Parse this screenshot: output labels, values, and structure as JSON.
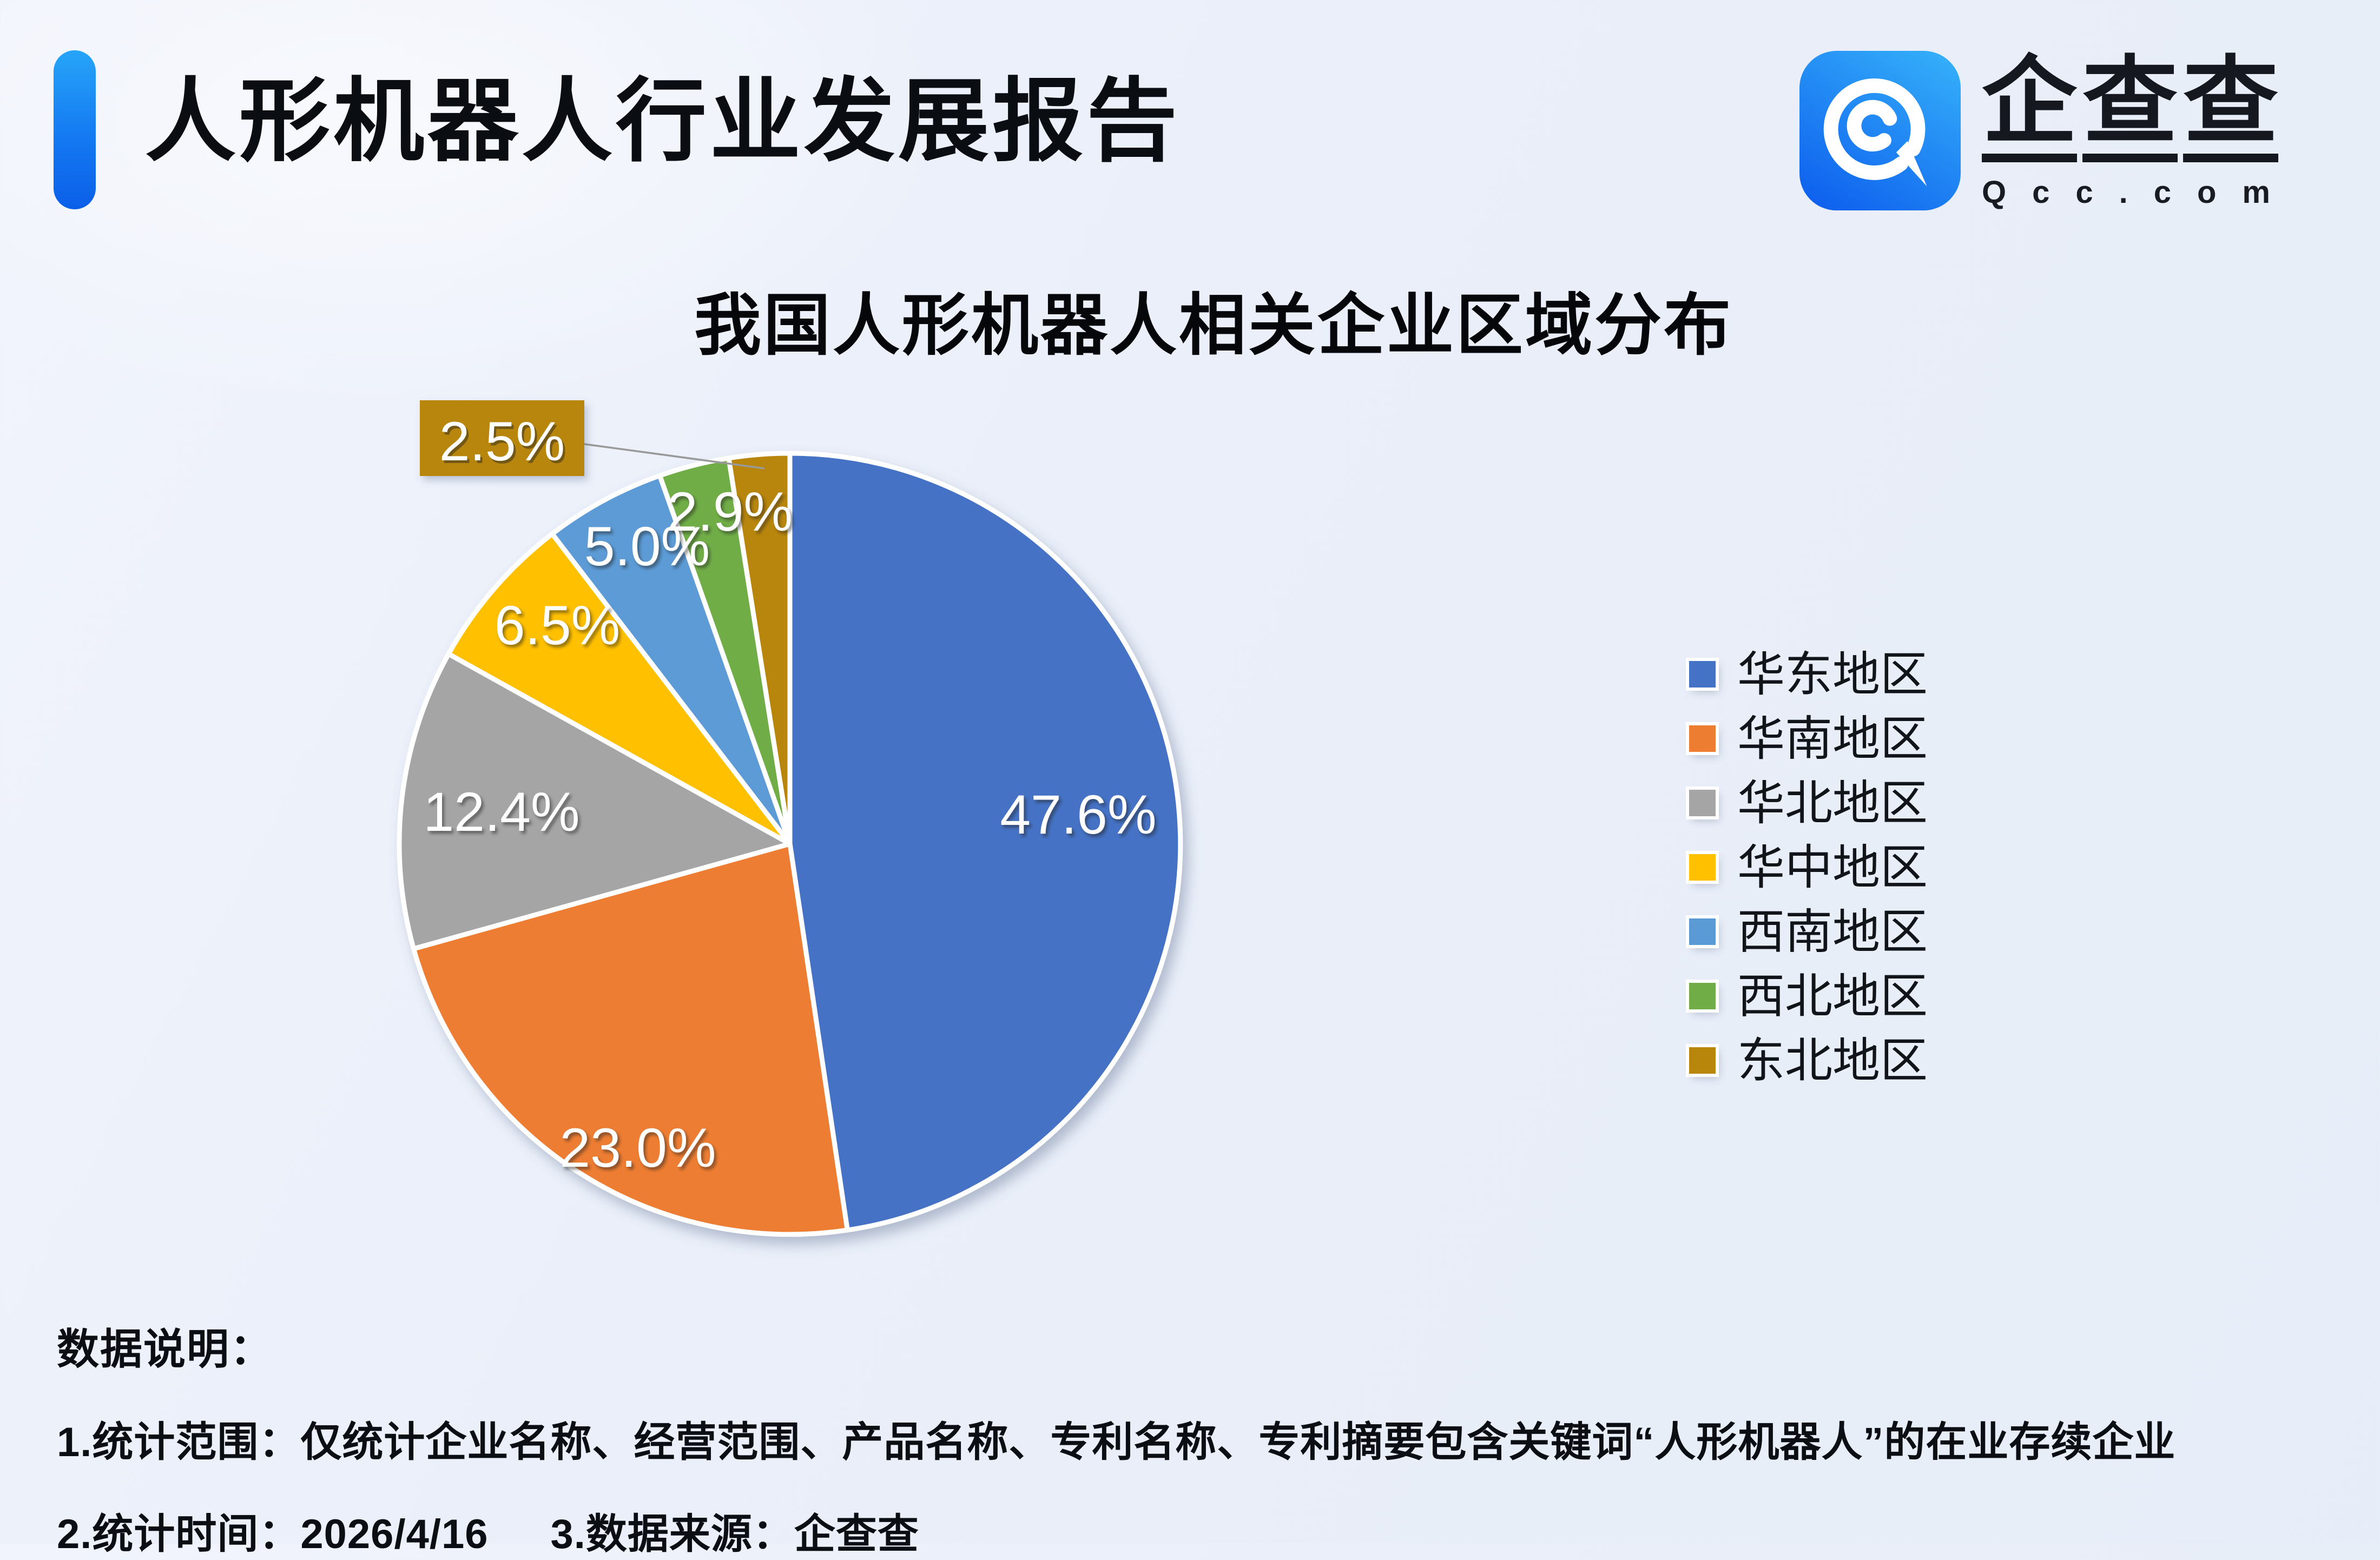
{
  "header": {
    "title": "人形机器人行业发展报告",
    "logo_text": "企查查",
    "logo_domain": "Qcc.com"
  },
  "chart_data": {
    "type": "pie",
    "title": "我国人形机器人相关企业区域分布",
    "categories": [
      "华东地区",
      "华南地区",
      "华北地区",
      "华中地区",
      "西南地区",
      "西北地区",
      "东北地区"
    ],
    "values": [
      47.6,
      23.0,
      12.4,
      6.5,
      5.0,
      2.9,
      2.5
    ],
    "labels": [
      "47.6%",
      "23.0%",
      "12.4%",
      "6.5%",
      "5.0%",
      "2.9%",
      "2.5%"
    ],
    "colors": [
      "#4472C4",
      "#ED7D31",
      "#A5A5A5",
      "#FFC000",
      "#5B9BD5",
      "#70AD47",
      "#B8860B"
    ],
    "legend_position": "right",
    "start_angle_deg": 0,
    "direction": "clockwise",
    "callout_index": 6,
    "label_color": "#FFFFFF"
  },
  "notes": {
    "heading": "数据说明：",
    "line1": "1.统计范围：仅统计企业名称、经营范围、产品名称、专利名称、专利摘要包含关键词“人形机器人”的在业存续企业",
    "line2": "2.统计时间：2026/4/16",
    "line3": "3.数据来源：企查查"
  },
  "colors": {
    "accent_bar_top": "#27A5F8",
    "accent_bar_bottom": "#0B5FE8",
    "logo_gradient_top": "#33ACF9",
    "logo_gradient_bottom": "#0F62EE",
    "leader_line": "#999999",
    "callout_background": "#B8860B",
    "slice_border": "#FFFFFF",
    "background": "#EAEFF9",
    "text": "#0B0E13"
  }
}
